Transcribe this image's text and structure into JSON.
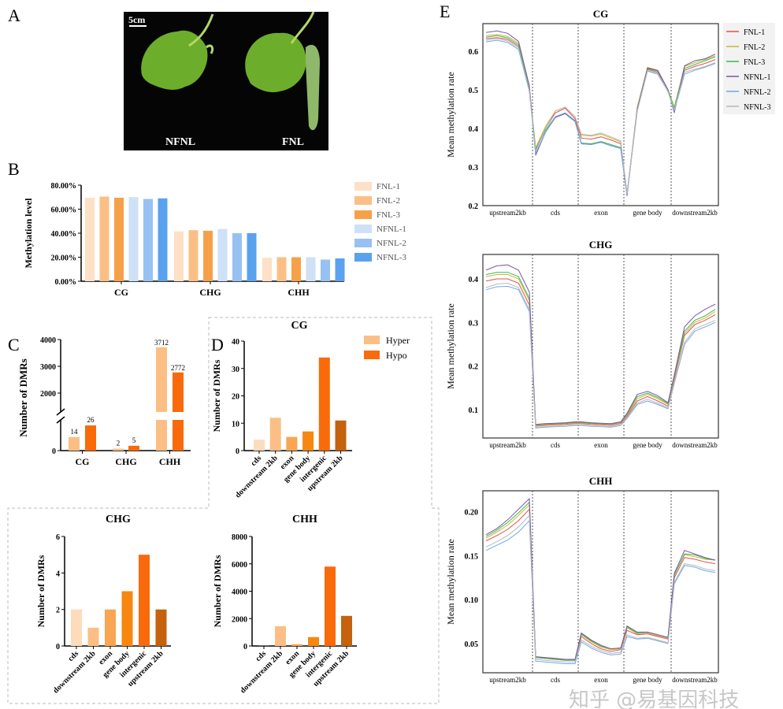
{
  "panels": {
    "a": "A",
    "b": "B",
    "c": "C",
    "d": "D",
    "e": "E"
  },
  "photo": {
    "scale_label": "5cm",
    "left_label": "NFNL",
    "right_label": "FNL"
  },
  "watermark": "知乎 @易基因科技",
  "chart_data": [
    {
      "id": "B",
      "type": "bar",
      "ylabel": "Methylation level",
      "categories": [
        "CG",
        "CHG",
        "CHH"
      ],
      "yticks": [
        "0.00%",
        "20.00%",
        "40.00%",
        "60.00%",
        "80.00%"
      ],
      "ylim": [
        0,
        80
      ],
      "legend": "right",
      "series": [
        {
          "name": "FNL-1",
          "color": "#fde0c5",
          "values": [
            69.5,
            41.5,
            19.5
          ]
        },
        {
          "name": "FNL-2",
          "color": "#fbbf85",
          "values": [
            70.5,
            42.5,
            20
          ]
        },
        {
          "name": "FNL-3",
          "color": "#f7a04a",
          "values": [
            69.5,
            42,
            20
          ]
        },
        {
          "name": "NFNL-1",
          "color": "#cfe1f7",
          "values": [
            70,
            43.5,
            20
          ]
        },
        {
          "name": "NFNL-2",
          "color": "#97c1f2",
          "values": [
            68.5,
            40,
            18
          ]
        },
        {
          "name": "NFNL-3",
          "color": "#5aa2ee",
          "values": [
            69,
            40,
            19
          ]
        }
      ]
    },
    {
      "id": "C",
      "type": "bar",
      "ylabel": "Number of DMRs",
      "categories": [
        "CG",
        "CHG",
        "CHH"
      ],
      "yticks": [
        "0",
        "2000",
        "3000",
        "4000"
      ],
      "broken_axis": true,
      "series": [
        {
          "name": "Hyper",
          "color": "#fbbf85",
          "values": [
            14,
            2,
            3712
          ],
          "labels": [
            "14",
            "2",
            "3712"
          ]
        },
        {
          "name": "Hypo",
          "color": "#f96a0a",
          "values": [
            26,
            5,
            2772
          ],
          "labels": [
            "26",
            "5",
            "2772"
          ]
        }
      ]
    },
    {
      "id": "D-CG",
      "type": "bar",
      "title": "CG",
      "ylabel": "Number of DMRs",
      "categories": [
        "cds",
        "downstream 2kb",
        "exon",
        "gene body",
        "intergenic",
        "upstream 2kb"
      ],
      "colors": [
        "#fddcbc",
        "#fbbf85",
        "#f9a551",
        "#f7870f",
        "#f96a0a",
        "#c4620e"
      ],
      "values": [
        4,
        12,
        5,
        7,
        34,
        11
      ],
      "yticks": [
        "0",
        "10",
        "20",
        "30",
        "40"
      ],
      "ylim": [
        0,
        40
      ],
      "legend": [
        {
          "name": "Hyper",
          "color": "#fbbf85"
        },
        {
          "name": "Hypo",
          "color": "#f96a0a"
        }
      ]
    },
    {
      "id": "D-CHG",
      "type": "bar",
      "title": "CHG",
      "ylabel": "Number of DMRs",
      "categories": [
        "cds",
        "downstream 2kb",
        "exon",
        "gene body",
        "intergenic",
        "upstream 2kb"
      ],
      "colors": [
        "#fddcbc",
        "#fbbf85",
        "#f9a551",
        "#f7870f",
        "#f96a0a",
        "#c4620e"
      ],
      "values": [
        2,
        1,
        2,
        3,
        5,
        2
      ],
      "yticks": [
        "0",
        "2",
        "4",
        "6"
      ],
      "ylim": [
        0,
        6
      ]
    },
    {
      "id": "D-CHH",
      "type": "bar",
      "title": "CHH",
      "ylabel": "Number of DMRs",
      "categories": [
        "cds",
        "downstream 2kb",
        "exon",
        "gene body",
        "intergenic",
        "upstream 2kb"
      ],
      "colors": [
        "#fddcbc",
        "#fbbf85",
        "#f9a551",
        "#f7870f",
        "#f96a0a",
        "#c4620e"
      ],
      "values": [
        10,
        1450,
        130,
        650,
        5800,
        2200
      ],
      "yticks": [
        "0",
        "2000",
        "4000",
        "6000",
        "8000"
      ],
      "ylim": [
        0,
        8000
      ]
    },
    {
      "id": "E-CG",
      "type": "line",
      "title": "CG",
      "ylabel": "Mean methylation rate",
      "regions": [
        "upstream2kb",
        "cds",
        "exon",
        "gene body",
        "downstream2kb"
      ],
      "yticks": [
        "0.2",
        "0.3",
        "0.4",
        "0.5",
        "0.6"
      ],
      "ylim": [
        0.2,
        0.671
      ],
      "legend": "right",
      "series": [
        {
          "name": "FNL-1",
          "color": "#e05050",
          "values": [
            0.632,
            0.635,
            0.63,
            0.612,
            0.5,
            0.345,
            0.4,
            0.44,
            0.452,
            0.425,
            0.375,
            0.372,
            0.378,
            0.37,
            0.36,
            0.23,
            0.45,
            0.553,
            0.545,
            0.5,
            0.45,
            0.55,
            0.56,
            0.568,
            0.578
          ]
        },
        {
          "name": "FNL-2",
          "color": "#c8b832",
          "values": [
            0.64,
            0.643,
            0.638,
            0.62,
            0.505,
            0.35,
            0.405,
            0.445,
            0.455,
            0.43,
            0.382,
            0.38,
            0.385,
            0.375,
            0.365,
            0.23,
            0.455,
            0.558,
            0.55,
            0.5,
            0.455,
            0.56,
            0.57,
            0.578,
            0.588
          ]
        },
        {
          "name": "FNL-3",
          "color": "#3cb850",
          "values": [
            0.636,
            0.64,
            0.634,
            0.616,
            0.502,
            0.345,
            0.395,
            0.43,
            0.44,
            0.42,
            0.362,
            0.36,
            0.366,
            0.358,
            0.35,
            0.23,
            0.45,
            0.555,
            0.548,
            0.5,
            0.452,
            0.555,
            0.565,
            0.575,
            0.585
          ]
        },
        {
          "name": "NFNL-1",
          "color": "#7a55a8",
          "values": [
            0.648,
            0.652,
            0.646,
            0.625,
            0.51,
            0.33,
            0.39,
            0.428,
            0.438,
            0.418,
            0.36,
            0.358,
            0.364,
            0.355,
            0.348,
            0.225,
            0.45,
            0.556,
            0.55,
            0.5,
            0.44,
            0.562,
            0.575,
            0.58,
            0.592
          ]
        },
        {
          "name": "NFNL-2",
          "color": "#6fa8e8",
          "values": [
            0.624,
            0.628,
            0.622,
            0.604,
            0.495,
            0.335,
            0.39,
            0.43,
            0.44,
            0.42,
            0.36,
            0.358,
            0.364,
            0.355,
            0.348,
            0.23,
            0.445,
            0.548,
            0.54,
            0.495,
            0.445,
            0.54,
            0.55,
            0.558,
            0.568
          ]
        },
        {
          "name": "NFNL-3",
          "color": "#b8b8b8",
          "values": [
            0.628,
            0.632,
            0.626,
            0.608,
            0.498,
            0.34,
            0.4,
            0.445,
            0.455,
            0.43,
            0.385,
            0.382,
            0.388,
            0.378,
            0.368,
            0.23,
            0.445,
            0.55,
            0.542,
            0.495,
            0.448,
            0.545,
            0.553,
            0.56,
            0.57
          ]
        }
      ]
    },
    {
      "id": "E-CHG",
      "type": "line",
      "title": "CHG",
      "ylabel": "Mean methylation rate",
      "regions": [
        "upstream2kb",
        "cds",
        "exon",
        "gene body",
        "downstream2kb"
      ],
      "yticks": [
        "0.1",
        "0.2",
        "0.3",
        "0.4"
      ],
      "ylim": [
        0.035,
        0.456
      ],
      "series": [
        {
          "name": "FNL-1",
          "color": "#e05050",
          "values": [
            0.395,
            0.4,
            0.4,
            0.39,
            0.34,
            0.062,
            0.064,
            0.065,
            0.066,
            0.068,
            0.068,
            0.066,
            0.065,
            0.064,
            0.068,
            0.085,
            0.12,
            0.13,
            0.12,
            0.108,
            0.17,
            0.27,
            0.295,
            0.305,
            0.318
          ]
        },
        {
          "name": "FNL-2",
          "color": "#c8b832",
          "values": [
            0.405,
            0.41,
            0.41,
            0.4,
            0.35,
            0.064,
            0.066,
            0.067,
            0.068,
            0.07,
            0.07,
            0.068,
            0.067,
            0.066,
            0.07,
            0.088,
            0.125,
            0.135,
            0.125,
            0.112,
            0.175,
            0.275,
            0.3,
            0.31,
            0.325
          ]
        },
        {
          "name": "FNL-3",
          "color": "#3cb850",
          "values": [
            0.41,
            0.415,
            0.415,
            0.405,
            0.355,
            0.065,
            0.067,
            0.068,
            0.069,
            0.071,
            0.071,
            0.069,
            0.068,
            0.067,
            0.071,
            0.09,
            0.13,
            0.138,
            0.128,
            0.114,
            0.178,
            0.28,
            0.305,
            0.315,
            0.33
          ]
        },
        {
          "name": "NFNL-1",
          "color": "#7a55a8",
          "values": [
            0.42,
            0.43,
            0.432,
            0.42,
            0.37,
            0.066,
            0.068,
            0.069,
            0.07,
            0.072,
            0.072,
            0.07,
            0.069,
            0.068,
            0.072,
            0.092,
            0.135,
            0.142,
            0.132,
            0.116,
            0.18,
            0.29,
            0.315,
            0.33,
            0.342
          ]
        },
        {
          "name": "NFNL-2",
          "color": "#6fa8e8",
          "values": [
            0.375,
            0.382,
            0.383,
            0.375,
            0.325,
            0.058,
            0.06,
            0.061,
            0.062,
            0.064,
            0.064,
            0.062,
            0.061,
            0.06,
            0.064,
            0.08,
            0.112,
            0.12,
            0.112,
            0.102,
            0.16,
            0.25,
            0.28,
            0.29,
            0.3
          ]
        },
        {
          "name": "NFNL-3",
          "color": "#b8b8b8",
          "values": [
            0.38,
            0.388,
            0.39,
            0.38,
            0.33,
            0.059,
            0.061,
            0.062,
            0.063,
            0.065,
            0.065,
            0.063,
            0.062,
            0.061,
            0.065,
            0.082,
            0.115,
            0.124,
            0.115,
            0.104,
            0.163,
            0.255,
            0.285,
            0.295,
            0.305
          ]
        }
      ]
    },
    {
      "id": "E-CHH",
      "type": "line",
      "title": "CHH",
      "ylabel": "Mean methylation rate",
      "regions": [
        "upstream2kb",
        "cds",
        "exon",
        "gene body",
        "downstream2kb"
      ],
      "yticks": [
        "0.05",
        "0.10",
        "0.15",
        "0.20"
      ],
      "ylim": [
        0.0167,
        0.224
      ],
      "series": [
        {
          "name": "FNL-1",
          "color": "#e05050",
          "values": [
            0.167,
            0.173,
            0.18,
            0.19,
            0.203,
            0.034,
            0.033,
            0.032,
            0.031,
            0.031,
            0.058,
            0.05,
            0.044,
            0.041,
            0.043,
            0.065,
            0.06,
            0.061,
            0.058,
            0.055,
            0.125,
            0.148,
            0.146,
            0.143,
            0.141
          ]
        },
        {
          "name": "FNL-2",
          "color": "#c8b832",
          "values": [
            0.17,
            0.177,
            0.185,
            0.196,
            0.208,
            0.035,
            0.034,
            0.033,
            0.032,
            0.032,
            0.06,
            0.052,
            0.046,
            0.043,
            0.044,
            0.068,
            0.061,
            0.062,
            0.059,
            0.056,
            0.128,
            0.151,
            0.149,
            0.146,
            0.145
          ]
        },
        {
          "name": "FNL-3",
          "color": "#3cb850",
          "values": [
            0.172,
            0.179,
            0.188,
            0.199,
            0.211,
            0.034,
            0.033,
            0.032,
            0.031,
            0.031,
            0.061,
            0.053,
            0.047,
            0.044,
            0.045,
            0.069,
            0.062,
            0.063,
            0.06,
            0.057,
            0.128,
            0.152,
            0.151,
            0.147,
            0.145
          ]
        },
        {
          "name": "NFNL-1",
          "color": "#7a55a8",
          "values": [
            0.174,
            0.181,
            0.191,
            0.203,
            0.215,
            0.035,
            0.034,
            0.033,
            0.032,
            0.032,
            0.062,
            0.054,
            0.048,
            0.044,
            0.045,
            0.07,
            0.063,
            0.063,
            0.06,
            0.057,
            0.13,
            0.156,
            0.152,
            0.148,
            0.145
          ]
        },
        {
          "name": "NFNL-2",
          "color": "#6fa8e8",
          "values": [
            0.156,
            0.162,
            0.168,
            0.177,
            0.19,
            0.03,
            0.029,
            0.028,
            0.027,
            0.027,
            0.052,
            0.045,
            0.04,
            0.037,
            0.038,
            0.058,
            0.055,
            0.056,
            0.053,
            0.05,
            0.118,
            0.139,
            0.137,
            0.133,
            0.131
          ]
        },
        {
          "name": "NFNL-3",
          "color": "#b8b8b8",
          "values": [
            0.16,
            0.166,
            0.173,
            0.183,
            0.196,
            0.032,
            0.031,
            0.03,
            0.029,
            0.029,
            0.054,
            0.047,
            0.042,
            0.039,
            0.04,
            0.06,
            0.056,
            0.057,
            0.054,
            0.051,
            0.12,
            0.141,
            0.139,
            0.135,
            0.133
          ]
        }
      ]
    }
  ]
}
